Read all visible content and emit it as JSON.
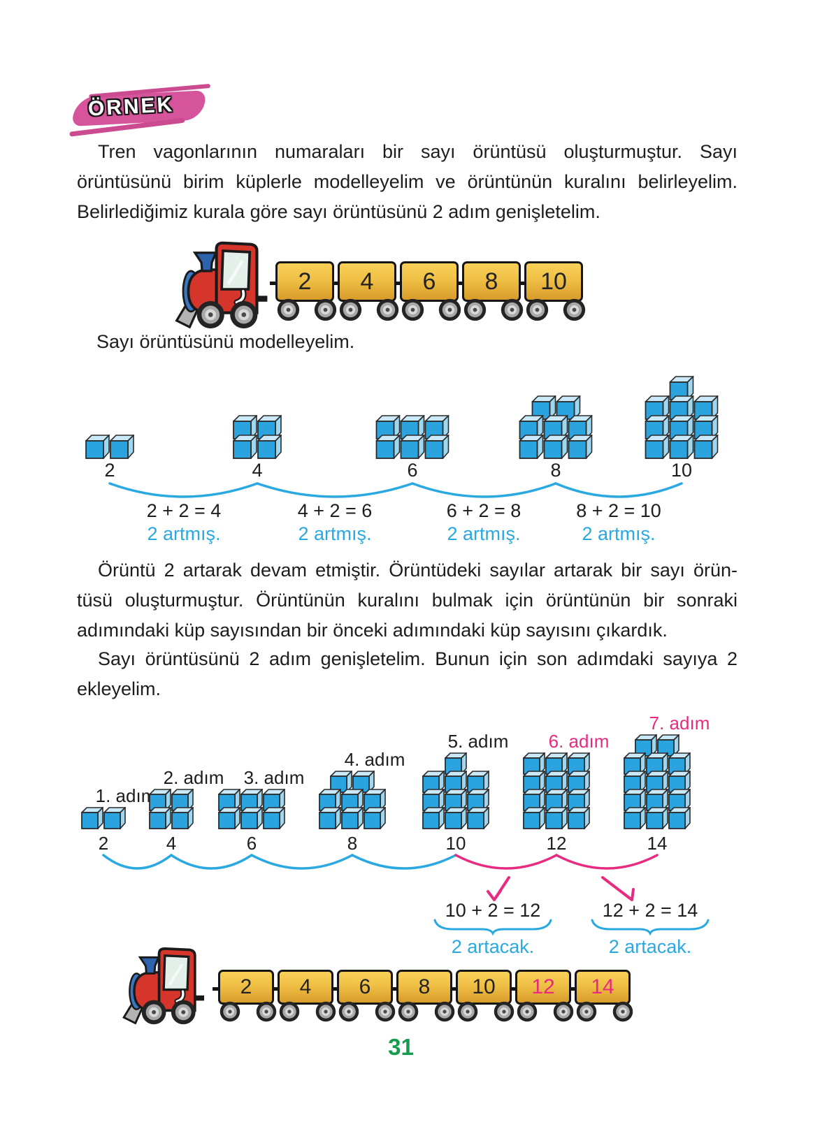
{
  "page_number": "31",
  "badge": {
    "label": "ÖRNEK"
  },
  "intro": {
    "lines": [
      "Tren vagonlarının numaraları bir sayı örüntüsü oluşturmuştur. Sayı",
      "örüntüsünü birim küplerle modelleyelim ve örüntünün kuralını belirleyelim.",
      "Belirlediğimiz kurala göre sayı örüntüsünü 2 adım genişletelim."
    ]
  },
  "model_caption": "Sayı örüntüsünü modelleyelim.",
  "train_top": {
    "wagons": [
      {
        "value": "2",
        "highlight": false
      },
      {
        "value": "4",
        "highlight": false
      },
      {
        "value": "6",
        "highlight": false
      },
      {
        "value": "8",
        "highlight": false
      },
      {
        "value": "10",
        "highlight": false
      }
    ]
  },
  "model1": {
    "groups": [
      {
        "value": "2",
        "rows": [
          2
        ]
      },
      {
        "value": "4",
        "rows": [
          2,
          2
        ]
      },
      {
        "value": "6",
        "rows": [
          3,
          3
        ]
      },
      {
        "value": "8",
        "rows": [
          2,
          3,
          3
        ]
      },
      {
        "value": "10",
        "rows": [
          1,
          3,
          3,
          3
        ]
      }
    ],
    "pairs": [
      {
        "equation": "2 + 2 = 4",
        "note": "2 artmış."
      },
      {
        "equation": "4 + 2 = 6",
        "note": "2 artmış."
      },
      {
        "equation": "6 + 2 = 8",
        "note": "2 artmış."
      },
      {
        "equation": "8 + 2 = 10",
        "note": "2 artmış."
      }
    ]
  },
  "explain": {
    "lines": [
      "Örüntü 2 artarak devam etmiştir. Örüntüdeki sayılar artarak bir sayı örün-",
      "tüsü oluşturmuştur. Örüntünün kuralını bulmak için örüntünün bir sonraki",
      "adımındaki küp sayısından bir önceki adımındaki küp sayısını çıkardık."
    ]
  },
  "extend": {
    "lines": [
      "Sayı örüntüsünü 2 adım genişletelim. Bunun için son adımdaki sayıya 2",
      "ekleyelim."
    ]
  },
  "model2": {
    "steps": [
      {
        "label": "1. adım",
        "value": "2",
        "rows": [
          2
        ],
        "highlight": false
      },
      {
        "label": "2. adım",
        "value": "4",
        "rows": [
          2,
          2
        ],
        "highlight": false
      },
      {
        "label": "3. adım",
        "value": "6",
        "rows": [
          3,
          3
        ],
        "highlight": false
      },
      {
        "label": "4. adım",
        "value": "8",
        "rows": [
          2,
          3,
          3
        ],
        "highlight": false
      },
      {
        "label": "5. adım",
        "value": "10",
        "rows": [
          1,
          3,
          3,
          3
        ],
        "highlight": false
      },
      {
        "label": "6. adım",
        "value": "12",
        "rows": [
          3,
          3,
          3,
          3
        ],
        "highlight": true
      },
      {
        "label": "7. adım",
        "value": "14",
        "rows": [
          2,
          3,
          3,
          3,
          3
        ],
        "highlight": true
      }
    ],
    "extensions": [
      {
        "equation": "10 + 2 = 12",
        "note": "2 artacak."
      },
      {
        "equation": "12 + 2 = 14",
        "note": "2 artacak."
      }
    ]
  },
  "train_bottom": {
    "wagons": [
      {
        "value": "2",
        "highlight": false
      },
      {
        "value": "4",
        "highlight": false
      },
      {
        "value": "6",
        "highlight": false
      },
      {
        "value": "8",
        "highlight": false
      },
      {
        "value": "10",
        "highlight": false
      },
      {
        "value": "12",
        "highlight": true
      },
      {
        "value": "14",
        "highlight": true
      }
    ]
  },
  "colors": {
    "blue": "#29a9e0",
    "pink": "#e82a80",
    "green": "#169b4f",
    "cube_front": "#2aa3de",
    "cube_top": "#c9e8f8",
    "cube_side": "#9ed7f0",
    "loco_red": "#d6352c",
    "badge_pink": "#d6549b"
  }
}
